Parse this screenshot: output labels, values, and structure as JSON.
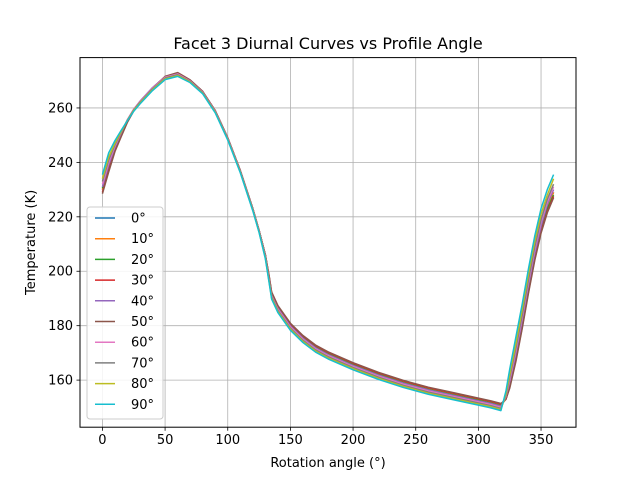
{
  "chart_data": {
    "type": "line",
    "title": "Facet 3 Diurnal Curves vs Profile Angle",
    "xlabel": "Rotation angle (°)",
    "ylabel": "Temperature (K)",
    "xlim": [
      -17.9,
      377.9
    ],
    "ylim": [
      142.7,
      278.5
    ],
    "xticks": [
      0,
      50,
      100,
      150,
      200,
      250,
      300,
      350
    ],
    "yticks": [
      160,
      180,
      200,
      220,
      240,
      260
    ],
    "grid": true,
    "legend_position": "lower-left",
    "x": [
      0,
      5,
      10,
      15,
      20,
      25,
      30,
      40,
      50,
      60,
      70,
      80,
      90,
      100,
      110,
      120,
      125,
      130,
      133,
      135,
      140,
      150,
      160,
      170,
      180,
      200,
      220,
      240,
      260,
      280,
      300,
      310,
      318,
      322,
      325,
      330,
      335,
      340,
      345,
      350,
      355,
      360
    ],
    "series": [
      {
        "name": "0°",
        "color": "#1f77b4",
        "values": [
          230,
          238,
          245,
          250,
          255,
          259,
          262,
          267,
          271,
          272.5,
          270,
          266,
          259,
          249,
          237,
          223,
          215,
          206,
          198,
          192,
          187,
          180.5,
          176,
          172.5,
          170,
          166,
          162.5,
          159.5,
          157,
          155,
          153,
          152,
          151,
          153,
          158,
          168,
          180,
          193,
          205,
          215,
          223,
          229
        ]
      },
      {
        "name": "10°",
        "color": "#ff7f0e",
        "values": [
          230,
          238,
          245,
          250.2,
          255.2,
          259.2,
          262.2,
          267.2,
          271.2,
          272.6,
          270,
          266,
          259,
          249,
          237,
          223,
          215,
          206,
          197.8,
          191.8,
          186.8,
          180.3,
          175.8,
          172.3,
          169.8,
          165.8,
          162.3,
          159.3,
          156.8,
          154.8,
          152.8,
          151.8,
          150.8,
          153,
          158,
          168,
          180,
          193,
          205,
          215,
          223,
          229
        ]
      },
      {
        "name": "20°",
        "color": "#2ca02c",
        "values": [
          230.5,
          238.5,
          245.3,
          250.4,
          255.4,
          259.4,
          262.4,
          267.4,
          271.4,
          272.7,
          270.1,
          266,
          259,
          249,
          237,
          223,
          215,
          206,
          197.6,
          191.6,
          186.6,
          180.1,
          175.6,
          172.1,
          169.6,
          165.6,
          162.1,
          159.1,
          156.6,
          154.6,
          152.6,
          151.6,
          150.6,
          153.2,
          158.5,
          168.5,
          180.5,
          193.5,
          205.5,
          215.5,
          223,
          228
        ]
      },
      {
        "name": "30°",
        "color": "#d62728",
        "values": [
          229,
          237,
          244.5,
          250,
          255,
          259,
          262,
          267,
          271,
          272.6,
          270,
          266,
          259,
          249,
          237,
          223,
          215,
          206,
          198.2,
          192.2,
          187.2,
          180.7,
          176.2,
          172.7,
          170.2,
          166.2,
          162.7,
          159.7,
          157.2,
          155.2,
          153.2,
          152.2,
          151.2,
          153,
          157.5,
          167.5,
          179.5,
          192.5,
          204.5,
          214.5,
          222,
          227.5
        ]
      },
      {
        "name": "40°",
        "color": "#9467bd",
        "values": [
          231,
          239,
          245.5,
          250.5,
          255.5,
          259.5,
          262.5,
          267.5,
          271.5,
          272.8,
          270.2,
          266,
          259,
          249,
          237,
          223,
          215,
          206,
          197.4,
          191.4,
          186.4,
          179.9,
          175.4,
          171.9,
          169.4,
          165.4,
          161.9,
          158.9,
          156.4,
          154.4,
          152.4,
          151.4,
          150.4,
          153.5,
          159,
          169.5,
          181.5,
          194.5,
          206.5,
          216.5,
          224.5,
          230
        ]
      },
      {
        "name": "50°",
        "color": "#8c564b",
        "values": [
          228.5,
          236.5,
          244,
          249.5,
          254.8,
          258.9,
          262,
          267.2,
          271.6,
          273,
          270.3,
          266.1,
          259,
          249,
          237,
          223,
          215,
          206,
          198.4,
          192.4,
          187.4,
          180.9,
          176.4,
          172.9,
          170.4,
          166.4,
          162.9,
          159.9,
          157.4,
          155.4,
          153.4,
          152.4,
          151.4,
          153,
          157,
          167,
          179,
          192,
          204,
          214,
          221.5,
          227
        ]
      },
      {
        "name": "60°",
        "color": "#e377c2",
        "values": [
          232,
          240,
          246,
          251,
          255.8,
          259.6,
          262.4,
          267.3,
          271.3,
          272.5,
          269.9,
          265.8,
          258.8,
          248.8,
          236.8,
          222.8,
          214.8,
          205.5,
          197,
          191,
          186,
          179.5,
          175,
          171.5,
          169,
          165,
          161.5,
          158.5,
          156,
          154,
          152,
          151,
          150,
          154,
          160,
          171,
          183,
          196,
          208,
          218,
          225.5,
          231
        ]
      },
      {
        "name": "70°",
        "color": "#7f7f7f",
        "values": [
          233,
          241,
          246.5,
          251.2,
          255.6,
          259.3,
          262.1,
          267,
          271,
          272.2,
          269.7,
          265.6,
          258.6,
          248.6,
          236.6,
          222.6,
          214.6,
          205.2,
          196.6,
          190.6,
          185.6,
          179.1,
          174.6,
          171.1,
          168.6,
          164.6,
          161.1,
          158.1,
          155.6,
          153.6,
          151.6,
          150.6,
          149.6,
          154.5,
          161,
          172,
          184,
          197,
          209,
          219,
          226.5,
          232
        ]
      },
      {
        "name": "80°",
        "color": "#bcbd22",
        "values": [
          234,
          242,
          247,
          251.4,
          255.5,
          259.1,
          261.8,
          266.7,
          270.7,
          271.9,
          269.5,
          265.4,
          258.4,
          248.4,
          236.4,
          222.4,
          214.4,
          204.9,
          196.2,
          190.2,
          185.2,
          178.7,
          174.2,
          170.7,
          168.2,
          164.2,
          160.7,
          157.7,
          155.2,
          153.2,
          151.2,
          150.2,
          149.2,
          155,
          162,
          173.5,
          186,
          199,
          211,
          221,
          228,
          234
        ]
      },
      {
        "name": "90°",
        "color": "#17becf",
        "values": [
          235.5,
          243.5,
          248,
          251.8,
          255.4,
          258.8,
          261.5,
          266.4,
          270.4,
          271.6,
          269.3,
          265.2,
          258.2,
          248.2,
          236.2,
          222.2,
          214.2,
          204.6,
          195.8,
          189.8,
          184.8,
          178.3,
          173.8,
          170.3,
          167.8,
          163.8,
          160.3,
          157.3,
          154.8,
          152.8,
          150.8,
          149.8,
          148.8,
          156,
          164,
          176,
          188,
          201,
          213,
          223,
          230,
          235.5
        ]
      }
    ]
  }
}
